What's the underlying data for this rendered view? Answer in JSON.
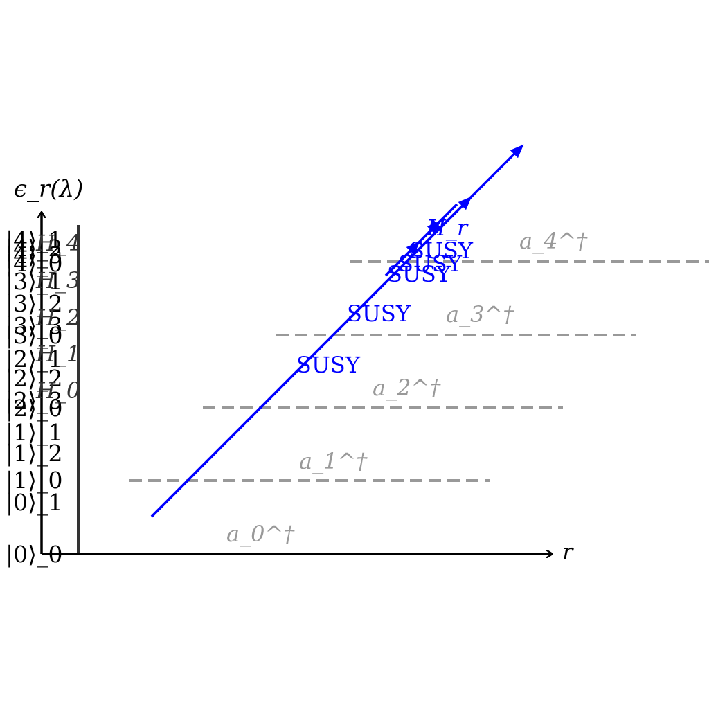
{
  "axes": {
    "y_label": "ϵ_r(λ)",
    "x_label": "r"
  },
  "state_labels": [
    "|0⟩_0",
    "|0⟩_1",
    "|1⟩_0",
    "|1⟩_2",
    "|1⟩_1",
    "|2⟩_0",
    "|2⟩_3",
    "|2⟩_2",
    "|2⟩_1",
    "|3⟩_0",
    "|3⟩_3",
    "|3⟩_2",
    "|3⟩_1",
    "|4⟩_0",
    "|4⟩_3",
    "|4⟩_2",
    "|4⟩_1"
  ],
  "hamiltonians": [
    "H_0",
    "H_1",
    "H_2",
    "H_3",
    "H_4"
  ],
  "operators": [
    "a_0^†",
    "a_1^†",
    "a_2^†",
    "a_3^†",
    "a_4^†"
  ],
  "transform_labels": [
    "SUSY",
    "SUSY",
    "SUSY",
    "SUSY",
    "SUSY"
  ],
  "flow_label": "H_r",
  "colors": {
    "axis": "#000000",
    "hamiltonian_line": "#333333",
    "dashed_level": "#999999",
    "susy": "#0000ff"
  }
}
